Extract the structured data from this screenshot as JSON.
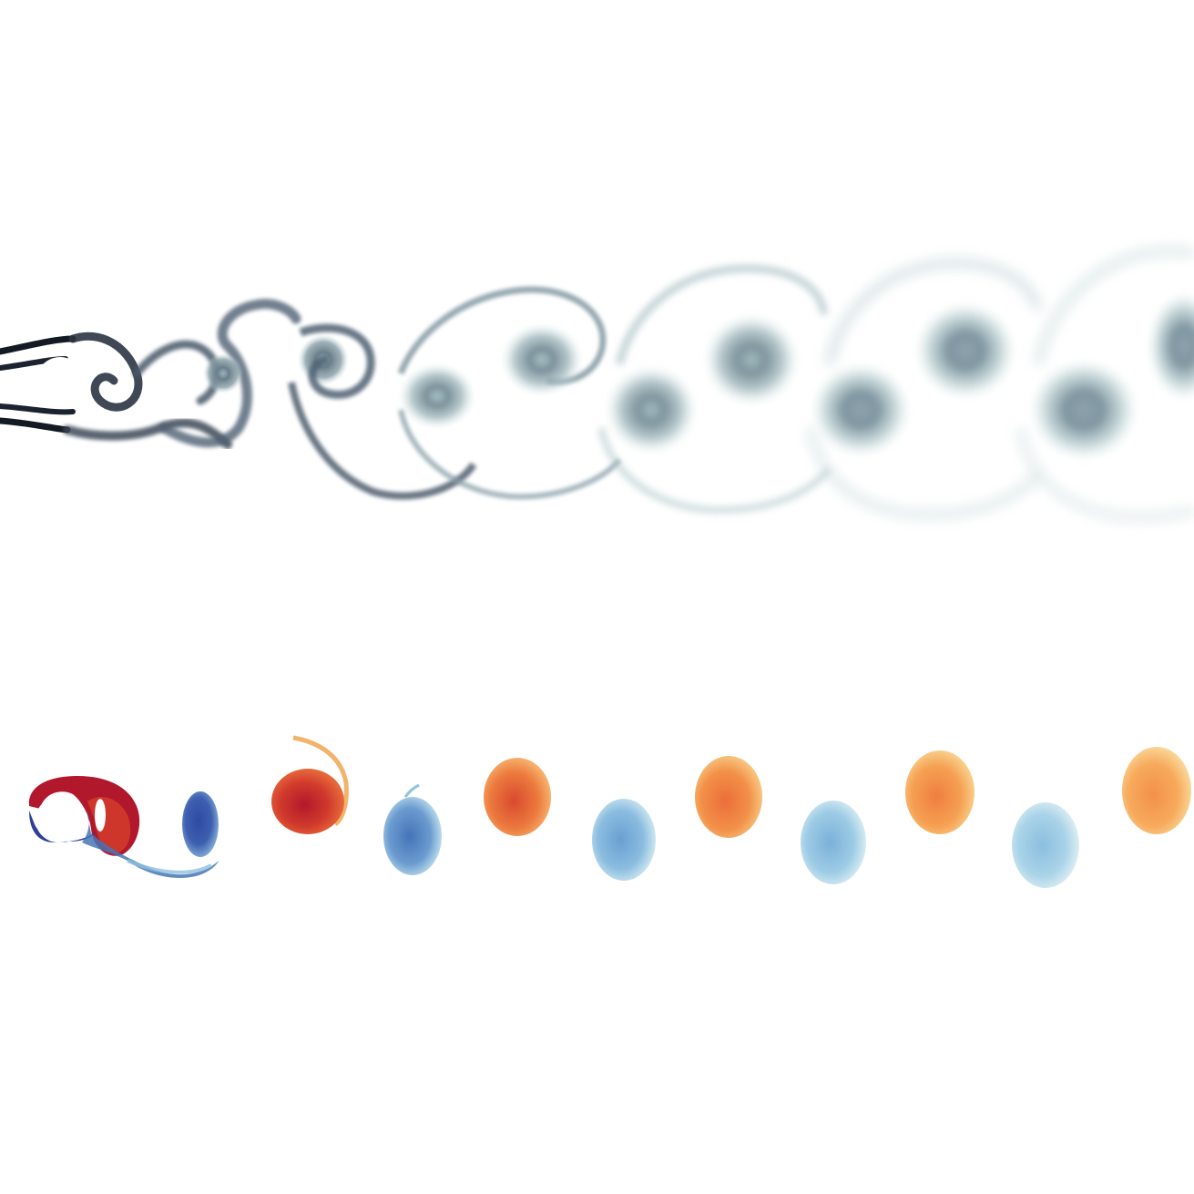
{
  "panels": [
    {
      "id": "dye-visualization",
      "description_colors": {
        "dark": "#1c2330",
        "mid": "#5b6f7e",
        "light": "#a9c4c6"
      }
    },
    {
      "id": "vorticity-field",
      "colors": {
        "deep_red": "#b2182b",
        "red": "#d6402a",
        "orange": "#f08a44",
        "pale_orange": "#f7c27a",
        "deep_blue": "#2c3f99",
        "blue": "#4575b4",
        "light_blue": "#8fc1e0",
        "pale_blue": "#c6e3ee"
      }
    }
  ]
}
